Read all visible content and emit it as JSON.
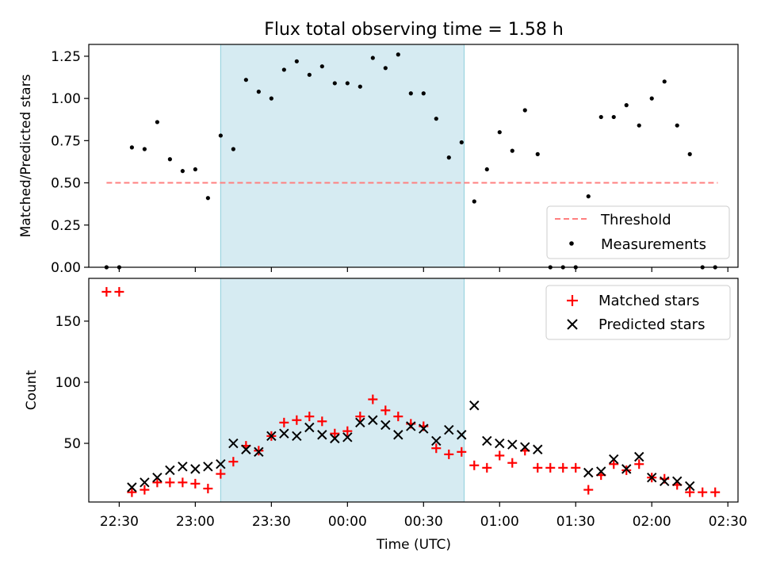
{
  "chart_data": [
    {
      "type": "scatter",
      "title": "Flux total observing time = 1.58 h",
      "xlabel": "",
      "ylabel": "Matched/Predicted stars",
      "xlim": [
        "22:18",
        "02:34"
      ],
      "ylim": [
        0,
        1.32
      ],
      "yticks": [
        0.0,
        0.25,
        0.5,
        0.75,
        1.0,
        1.25
      ],
      "ytick_labels": [
        "0.00",
        "0.25",
        "0.50",
        "0.75",
        "1.00",
        "1.25"
      ],
      "shaded_region": {
        "x": [
          "23:10",
          "00:46"
        ],
        "color": "#add8e6"
      },
      "threshold": {
        "name": "Threshold",
        "y": 0.5,
        "x": [
          "22:25",
          "02:26"
        ],
        "color": "#ff7f7f",
        "style": "dashed"
      },
      "series": [
        {
          "name": "Measurements",
          "color": "#000000",
          "marker": "dot",
          "points": [
            [
              "22:25",
              0.0
            ],
            [
              "22:30",
              0.0
            ],
            [
              "22:35",
              0.71
            ],
            [
              "22:40",
              0.7
            ],
            [
              "22:45",
              0.86
            ],
            [
              "22:50",
              0.64
            ],
            [
              "22:55",
              0.57
            ],
            [
              "23:00",
              0.58
            ],
            [
              "23:05",
              0.41
            ],
            [
              "23:10",
              0.78
            ],
            [
              "23:15",
              0.7
            ],
            [
              "23:20",
              1.11
            ],
            [
              "23:25",
              1.04
            ],
            [
              "23:30",
              1.0
            ],
            [
              "23:35",
              1.17
            ],
            [
              "23:40",
              1.22
            ],
            [
              "23:45",
              1.14
            ],
            [
              "23:50",
              1.19
            ],
            [
              "23:55",
              1.09
            ],
            [
              "00:00",
              1.09
            ],
            [
              "00:05",
              1.07
            ],
            [
              "00:10",
              1.24
            ],
            [
              "00:15",
              1.18
            ],
            [
              "00:20",
              1.26
            ],
            [
              "00:25",
              1.03
            ],
            [
              "00:30",
              1.03
            ],
            [
              "00:35",
              0.88
            ],
            [
              "00:40",
              0.65
            ],
            [
              "00:45",
              0.74
            ],
            [
              "00:50",
              0.39
            ],
            [
              "00:55",
              0.58
            ],
            [
              "01:00",
              0.8
            ],
            [
              "01:05",
              0.69
            ],
            [
              "01:10",
              0.93
            ],
            [
              "01:15",
              0.67
            ],
            [
              "01:20",
              0.0
            ],
            [
              "01:25",
              0.0
            ],
            [
              "01:30",
              0.0
            ],
            [
              "01:35",
              0.42
            ],
            [
              "01:40",
              0.89
            ],
            [
              "01:45",
              0.89
            ],
            [
              "01:50",
              0.96
            ],
            [
              "01:55",
              0.84
            ],
            [
              "02:00",
              1.0
            ],
            [
              "02:05",
              1.1
            ],
            [
              "02:10",
              0.84
            ],
            [
              "02:15",
              0.67
            ],
            [
              "02:20",
              0.0
            ],
            [
              "02:25",
              0.0
            ]
          ]
        }
      ],
      "legend": {
        "position": "lower-right",
        "entries": [
          "Threshold",
          "Measurements"
        ]
      }
    },
    {
      "type": "scatter",
      "title": "",
      "xlabel": "Time (UTC)",
      "ylabel": "Count",
      "xlim": [
        "22:18",
        "02:34"
      ],
      "ylim": [
        2,
        185
      ],
      "yticks": [
        50,
        100,
        150
      ],
      "ytick_labels": [
        "50",
        "100",
        "150"
      ],
      "xticks": [
        "22:30",
        "23:00",
        "23:30",
        "00:00",
        "00:30",
        "01:00",
        "01:30",
        "02:00",
        "02:30"
      ],
      "shaded_region": {
        "x": [
          "23:10",
          "00:46"
        ],
        "color": "#add8e6"
      },
      "series": [
        {
          "name": "Matched stars",
          "color": "#ff0000",
          "marker": "plus",
          "points": [
            [
              "22:25",
              174
            ],
            [
              "22:30",
              174
            ],
            [
              "22:35",
              10
            ],
            [
              "22:40",
              12
            ],
            [
              "22:45",
              18
            ],
            [
              "22:50",
              18
            ],
            [
              "22:55",
              18
            ],
            [
              "23:00",
              17
            ],
            [
              "23:05",
              13
            ],
            [
              "23:10",
              25
            ],
            [
              "23:15",
              35
            ],
            [
              "23:20",
              48
            ],
            [
              "23:25",
              44
            ],
            [
              "23:30",
              56
            ],
            [
              "23:35",
              67
            ],
            [
              "23:40",
              69
            ],
            [
              "23:45",
              72
            ],
            [
              "23:50",
              68
            ],
            [
              "23:55",
              58
            ],
            [
              "00:00",
              60
            ],
            [
              "00:05",
              72
            ],
            [
              "00:10",
              86
            ],
            [
              "00:15",
              77
            ],
            [
              "00:20",
              72
            ],
            [
              "00:25",
              66
            ],
            [
              "00:30",
              64
            ],
            [
              "00:35",
              46
            ],
            [
              "00:40",
              41
            ],
            [
              "00:45",
              43
            ],
            [
              "00:50",
              32
            ],
            [
              "00:55",
              30
            ],
            [
              "01:00",
              40
            ],
            [
              "01:05",
              34
            ],
            [
              "01:10",
              44
            ],
            [
              "01:15",
              30
            ],
            [
              "01:20",
              30
            ],
            [
              "01:25",
              30
            ],
            [
              "01:30",
              30
            ],
            [
              "01:35",
              12
            ],
            [
              "01:40",
              24
            ],
            [
              "01:45",
              33
            ],
            [
              "01:50",
              28
            ],
            [
              "01:55",
              33
            ],
            [
              "02:00",
              22
            ],
            [
              "02:05",
              21
            ],
            [
              "02:10",
              16
            ],
            [
              "02:15",
              10
            ],
            [
              "02:20",
              10
            ],
            [
              "02:25",
              10
            ]
          ]
        },
        {
          "name": "Predicted stars",
          "color": "#000000",
          "marker": "x",
          "points": [
            [
              "22:35",
              14
            ],
            [
              "22:40",
              18
            ],
            [
              "22:45",
              22
            ],
            [
              "22:50",
              28
            ],
            [
              "22:55",
              31
            ],
            [
              "23:00",
              29
            ],
            [
              "23:05",
              31
            ],
            [
              "23:10",
              33
            ],
            [
              "23:15",
              50
            ],
            [
              "23:20",
              45
            ],
            [
              "23:25",
              43
            ],
            [
              "23:30",
              56
            ],
            [
              "23:35",
              58
            ],
            [
              "23:40",
              56
            ],
            [
              "23:45",
              63
            ],
            [
              "23:50",
              57
            ],
            [
              "23:55",
              54
            ],
            [
              "00:00",
              55
            ],
            [
              "00:05",
              67
            ],
            [
              "00:10",
              69
            ],
            [
              "00:15",
              65
            ],
            [
              "00:20",
              57
            ],
            [
              "00:25",
              64
            ],
            [
              "00:30",
              62
            ],
            [
              "00:35",
              52
            ],
            [
              "00:40",
              61
            ],
            [
              "00:45",
              57
            ],
            [
              "00:50",
              81
            ],
            [
              "00:55",
              52
            ],
            [
              "01:00",
              50
            ],
            [
              "01:05",
              49
            ],
            [
              "01:10",
              47
            ],
            [
              "01:15",
              45
            ],
            [
              "01:35",
              26
            ],
            [
              "01:40",
              27
            ],
            [
              "01:45",
              37
            ],
            [
              "01:50",
              29
            ],
            [
              "01:55",
              39
            ],
            [
              "02:00",
              22
            ],
            [
              "02:05",
              19
            ],
            [
              "02:10",
              19
            ],
            [
              "02:15",
              15
            ]
          ]
        }
      ],
      "legend": {
        "position": "top-right",
        "entries": [
          "Matched stars",
          "Predicted stars"
        ]
      }
    }
  ]
}
